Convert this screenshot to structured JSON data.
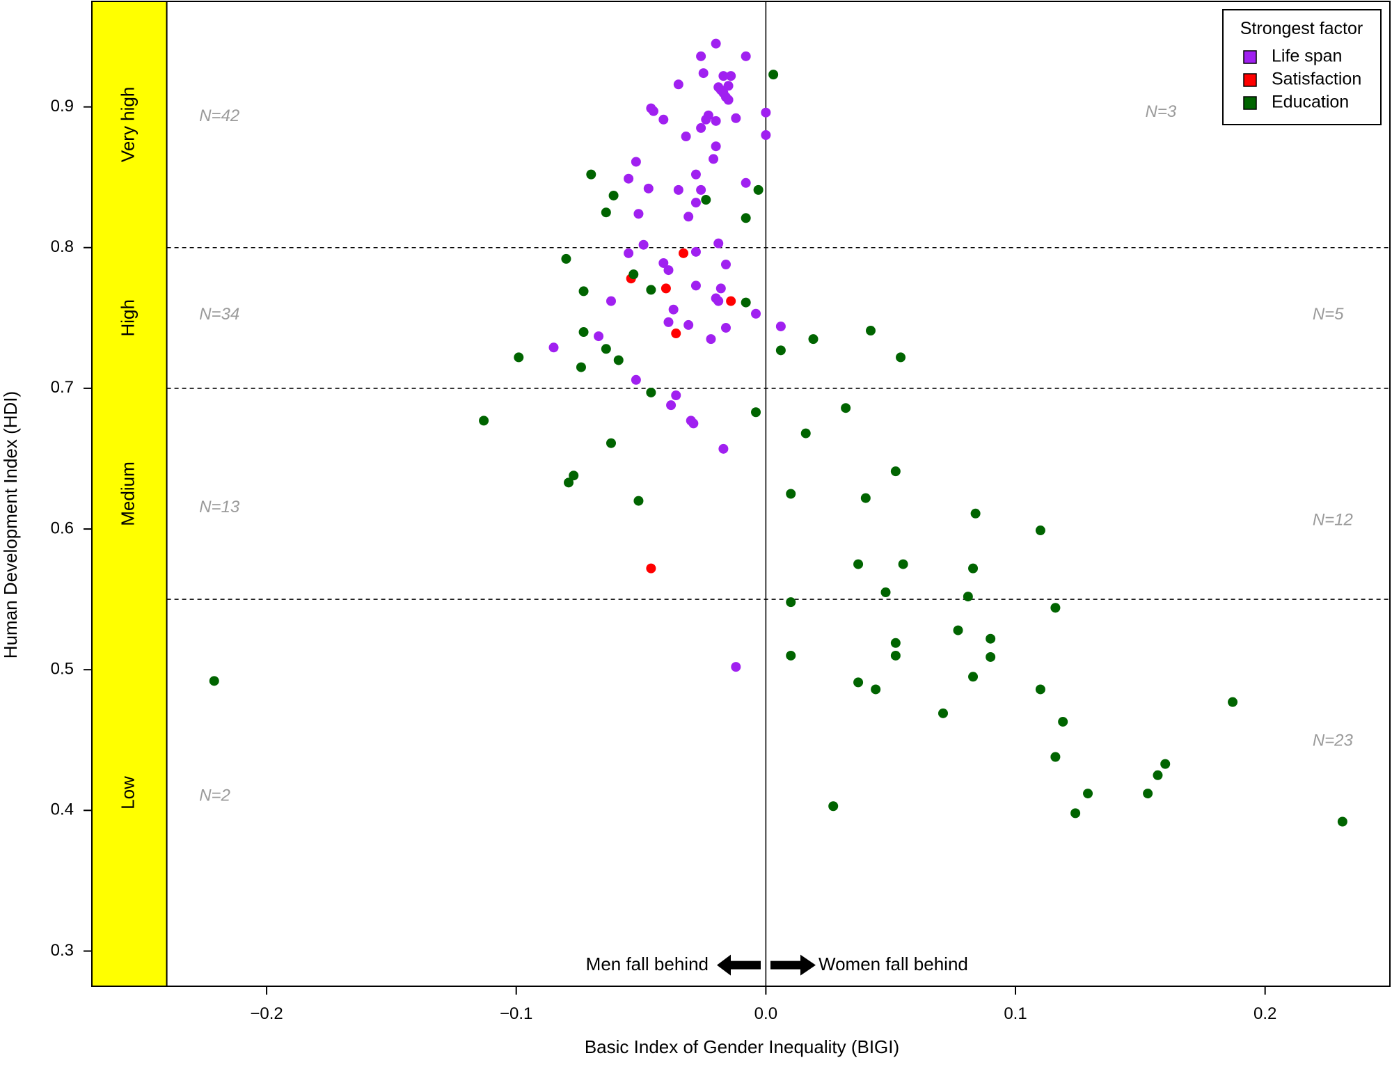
{
  "chart_data": {
    "type": "scatter",
    "xlabel": "Basic Index of Gender Inequality (BIGI)",
    "ylabel": "Human Development Index (HDI)",
    "xlim": [
      -0.27,
      0.25
    ],
    "ylim": [
      0.275,
      0.975
    ],
    "xticks": [
      -0.2,
      -0.1,
      0.0,
      0.1,
      0.2
    ],
    "xtick_labels": [
      "−0.2",
      "−0.1",
      "0.0",
      "0.1",
      "0.2"
    ],
    "yticks": [
      0.3,
      0.4,
      0.5,
      0.6,
      0.7,
      0.8,
      0.9
    ],
    "ytick_labels": [
      "0.3",
      "0.4",
      "0.5",
      "0.6",
      "0.7",
      "0.8",
      "0.9"
    ],
    "grid": false,
    "vline": 0.0,
    "band_boundary_x": -0.24,
    "band_color": "#ffff00",
    "thresholds": [
      0.55,
      0.7,
      0.8
    ],
    "bands": [
      {
        "label": "Very high",
        "y_center": 0.8875
      },
      {
        "label": "High",
        "y_center": 0.75
      },
      {
        "label": "Medium",
        "y_center": 0.625
      },
      {
        "label": "Low",
        "y_center": 0.4125
      }
    ],
    "n_counts": [
      {
        "text": "N=42",
        "x": -0.227,
        "y": 0.893
      },
      {
        "text": "N=3",
        "x": 0.152,
        "y": 0.896
      },
      {
        "text": "N=34",
        "x": -0.227,
        "y": 0.752
      },
      {
        "text": "N=5",
        "x": 0.219,
        "y": 0.752
      },
      {
        "text": "N=13",
        "x": -0.227,
        "y": 0.615
      },
      {
        "text": "N=12",
        "x": 0.219,
        "y": 0.606
      },
      {
        "text": "N=2",
        "x": -0.227,
        "y": 0.41
      },
      {
        "text": "N=23",
        "x": 0.219,
        "y": 0.449
      }
    ],
    "annotations": {
      "men": "Men fall behind",
      "women": "Women fall behind",
      "arrow_y": 0.29
    },
    "legend": {
      "title": "Strongest factor",
      "position": "top-right",
      "entries": [
        "Life span",
        "Satisfaction",
        "Education"
      ]
    },
    "series": [
      {
        "name": "Life span",
        "color": "#a020f0",
        "points": [
          [
            -0.02,
            0.945
          ],
          [
            -0.026,
            0.936
          ],
          [
            -0.008,
            0.936
          ],
          [
            -0.025,
            0.924
          ],
          [
            -0.017,
            0.922
          ],
          [
            -0.014,
            0.922
          ],
          [
            -0.035,
            0.916
          ],
          [
            -0.019,
            0.914
          ],
          [
            -0.015,
            0.915
          ],
          [
            -0.018,
            0.912
          ],
          [
            -0.017,
            0.91
          ],
          [
            -0.016,
            0.907
          ],
          [
            -0.015,
            0.905
          ],
          [
            -0.046,
            0.899
          ],
          [
            -0.045,
            0.897
          ],
          [
            -0.023,
            0.894
          ],
          [
            -0.024,
            0.891
          ],
          [
            -0.02,
            0.89
          ],
          [
            -0.012,
            0.892
          ],
          [
            -0.041,
            0.891
          ],
          [
            0.0,
            0.896
          ],
          [
            -0.026,
            0.885
          ],
          [
            -0.032,
            0.879
          ],
          [
            0.0,
            0.88
          ],
          [
            -0.02,
            0.872
          ],
          [
            -0.021,
            0.863
          ],
          [
            -0.052,
            0.861
          ],
          [
            -0.028,
            0.852
          ],
          [
            -0.055,
            0.849
          ],
          [
            -0.008,
            0.846
          ],
          [
            -0.047,
            0.842
          ],
          [
            -0.035,
            0.841
          ],
          [
            -0.026,
            0.841
          ],
          [
            -0.028,
            0.832
          ],
          [
            -0.051,
            0.824
          ],
          [
            -0.031,
            0.822
          ],
          [
            -0.019,
            0.803
          ],
          [
            -0.049,
            0.802
          ],
          [
            -0.055,
            0.796
          ],
          [
            -0.028,
            0.797
          ],
          [
            -0.041,
            0.789
          ],
          [
            -0.016,
            0.788
          ],
          [
            -0.039,
            0.784
          ],
          [
            -0.028,
            0.773
          ],
          [
            -0.018,
            0.771
          ],
          [
            -0.02,
            0.764
          ],
          [
            -0.019,
            0.762
          ],
          [
            -0.062,
            0.762
          ],
          [
            -0.037,
            0.756
          ],
          [
            -0.004,
            0.753
          ],
          [
            -0.039,
            0.747
          ],
          [
            -0.031,
            0.745
          ],
          [
            0.006,
            0.744
          ],
          [
            -0.016,
            0.743
          ],
          [
            -0.067,
            0.737
          ],
          [
            -0.022,
            0.735
          ],
          [
            -0.085,
            0.729
          ],
          [
            -0.052,
            0.706
          ],
          [
            -0.036,
            0.695
          ],
          [
            -0.038,
            0.688
          ],
          [
            -0.03,
            0.677
          ],
          [
            -0.029,
            0.675
          ],
          [
            -0.017,
            0.657
          ],
          [
            -0.012,
            0.502
          ]
        ]
      },
      {
        "name": "Satisfaction",
        "color": "#ff0000",
        "points": [
          [
            -0.033,
            0.796
          ],
          [
            -0.054,
            0.778
          ],
          [
            -0.04,
            0.771
          ],
          [
            -0.014,
            0.762
          ],
          [
            -0.036,
            0.739
          ],
          [
            -0.046,
            0.572
          ]
        ]
      },
      {
        "name": "Education",
        "color": "#006400",
        "points": [
          [
            0.003,
            0.923
          ],
          [
            -0.07,
            0.852
          ],
          [
            -0.061,
            0.837
          ],
          [
            -0.003,
            0.841
          ],
          [
            -0.024,
            0.834
          ],
          [
            -0.064,
            0.825
          ],
          [
            -0.008,
            0.821
          ],
          [
            -0.08,
            0.792
          ],
          [
            -0.053,
            0.781
          ],
          [
            -0.046,
            0.77
          ],
          [
            -0.073,
            0.769
          ],
          [
            -0.008,
            0.761
          ],
          [
            -0.073,
            0.74
          ],
          [
            0.042,
            0.741
          ],
          [
            0.019,
            0.735
          ],
          [
            -0.064,
            0.728
          ],
          [
            0.006,
            0.727
          ],
          [
            -0.099,
            0.722
          ],
          [
            0.054,
            0.722
          ],
          [
            -0.059,
            0.72
          ],
          [
            -0.074,
            0.715
          ],
          [
            -0.046,
            0.697
          ],
          [
            0.032,
            0.686
          ],
          [
            -0.004,
            0.683
          ],
          [
            -0.113,
            0.677
          ],
          [
            0.016,
            0.668
          ],
          [
            -0.062,
            0.661
          ],
          [
            0.052,
            0.641
          ],
          [
            -0.077,
            0.638
          ],
          [
            -0.079,
            0.633
          ],
          [
            0.01,
            0.625
          ],
          [
            0.04,
            0.622
          ],
          [
            -0.051,
            0.62
          ],
          [
            0.084,
            0.611
          ],
          [
            0.11,
            0.599
          ],
          [
            0.037,
            0.575
          ],
          [
            0.055,
            0.575
          ],
          [
            0.083,
            0.572
          ],
          [
            0.048,
            0.555
          ],
          [
            0.081,
            0.552
          ],
          [
            0.01,
            0.548
          ],
          [
            0.116,
            0.544
          ],
          [
            0.077,
            0.528
          ],
          [
            0.09,
            0.522
          ],
          [
            0.052,
            0.519
          ],
          [
            -0.221,
            0.492
          ],
          [
            0.052,
            0.51
          ],
          [
            0.01,
            0.51
          ],
          [
            0.09,
            0.509
          ],
          [
            0.083,
            0.495
          ],
          [
            0.037,
            0.491
          ],
          [
            0.044,
            0.486
          ],
          [
            0.11,
            0.486
          ],
          [
            0.187,
            0.477
          ],
          [
            0.071,
            0.469
          ],
          [
            0.119,
            0.463
          ],
          [
            0.116,
            0.438
          ],
          [
            0.16,
            0.433
          ],
          [
            0.157,
            0.425
          ],
          [
            0.129,
            0.412
          ],
          [
            0.153,
            0.412
          ],
          [
            0.027,
            0.403
          ],
          [
            0.124,
            0.398
          ],
          [
            0.231,
            0.392
          ]
        ]
      }
    ]
  }
}
